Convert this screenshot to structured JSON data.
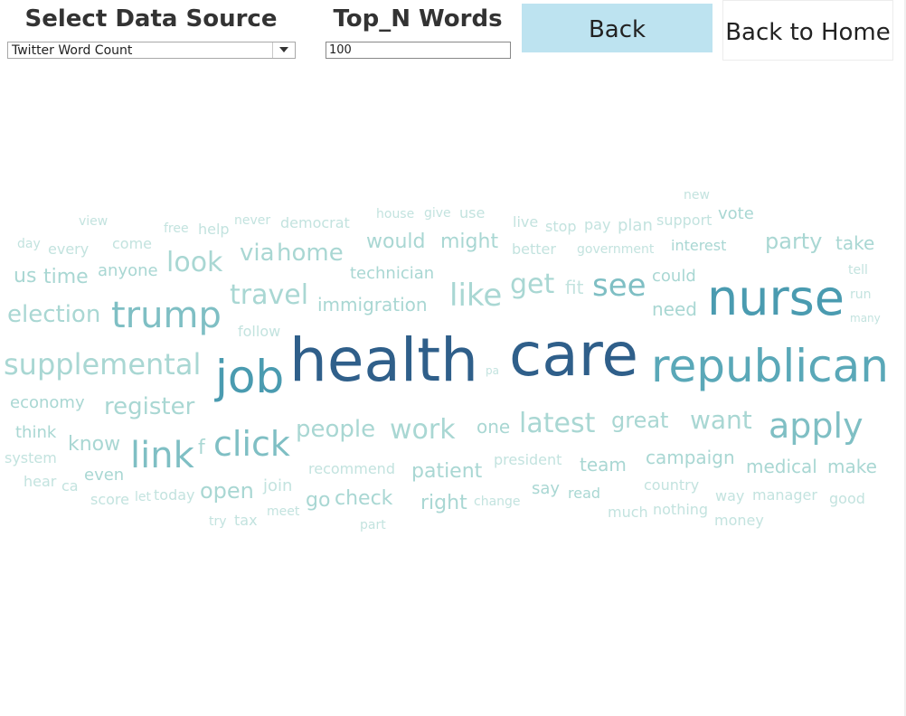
{
  "controls": {
    "source_title": "Select Data Source",
    "source_value": "Twitter Word Count",
    "topn_title": "Top_N Words",
    "topn_value": "100",
    "back_label": "Back",
    "home_label": "Back to Home"
  },
  "colors": {
    "back_button_bg": "#bde3f0",
    "dark_blue": "#2f5f8a",
    "teal": "#4a9bb0",
    "mid_teal": "#7fbfc4",
    "light_teal": "#a9d7d3",
    "pale_teal": "#c3e3df"
  },
  "word_cloud": [
    {
      "text": "health",
      "size": 66,
      "color": "#2f5f8a"
    },
    {
      "text": "care",
      "size": 66,
      "color": "#2f5f8a"
    },
    {
      "text": "nurse",
      "size": 54,
      "color": "#4a9bb0"
    },
    {
      "text": "republican",
      "size": 50,
      "color": "#5aa8b8"
    },
    {
      "text": "job",
      "size": 50,
      "color": "#4a9bb0"
    },
    {
      "text": "trump",
      "size": 40,
      "color": "#7fbfc4"
    },
    {
      "text": "link",
      "size": 40,
      "color": "#7fbfc4"
    },
    {
      "text": "click",
      "size": 38,
      "color": "#7fbfc4"
    },
    {
      "text": "apply",
      "size": 38,
      "color": "#7fbfc4"
    },
    {
      "text": "supplemental",
      "size": 32,
      "color": "#a9d7d3"
    },
    {
      "text": "like",
      "size": 34,
      "color": "#a9d7d3"
    },
    {
      "text": "see",
      "size": 34,
      "color": "#7fbfc4"
    },
    {
      "text": "get",
      "size": 30,
      "color": "#a9d7d3"
    },
    {
      "text": "look",
      "size": 30,
      "color": "#a9d7d3"
    },
    {
      "text": "travel",
      "size": 30,
      "color": "#a9d7d3"
    },
    {
      "text": "work",
      "size": 30,
      "color": "#a9d7d3"
    },
    {
      "text": "latest",
      "size": 30,
      "color": "#a9d7d3"
    },
    {
      "text": "want",
      "size": 28,
      "color": "#a9d7d3"
    },
    {
      "text": "register",
      "size": 26,
      "color": "#a9d7d3"
    },
    {
      "text": "election",
      "size": 26,
      "color": "#a9d7d3"
    },
    {
      "text": "people",
      "size": 26,
      "color": "#a9d7d3"
    },
    {
      "text": "home",
      "size": 26,
      "color": "#a9d7d3"
    },
    {
      "text": "via",
      "size": 26,
      "color": "#a9d7d3"
    },
    {
      "text": "great",
      "size": 24,
      "color": "#a9d7d3"
    },
    {
      "text": "party",
      "size": 24,
      "color": "#a9d7d3"
    },
    {
      "text": "open",
      "size": 24,
      "color": "#a9d7d3"
    },
    {
      "text": "would",
      "size": 22,
      "color": "#a9d7d3"
    },
    {
      "text": "might",
      "size": 22,
      "color": "#a9d7d3"
    },
    {
      "text": "time",
      "size": 22,
      "color": "#a9d7d3"
    },
    {
      "text": "us",
      "size": 22,
      "color": "#a9d7d3"
    },
    {
      "text": "know",
      "size": 22,
      "color": "#a9d7d3"
    },
    {
      "text": "patient",
      "size": 22,
      "color": "#a9d7d3"
    },
    {
      "text": "check",
      "size": 22,
      "color": "#a9d7d3"
    },
    {
      "text": "go",
      "size": 22,
      "color": "#a9d7d3"
    },
    {
      "text": "right",
      "size": 22,
      "color": "#a9d7d3"
    },
    {
      "text": "medical",
      "size": 20,
      "color": "#a9d7d3"
    },
    {
      "text": "make",
      "size": 20,
      "color": "#a9d7d3"
    },
    {
      "text": "campaign",
      "size": 20,
      "color": "#a9d7d3"
    },
    {
      "text": "team",
      "size": 20,
      "color": "#a9d7d3"
    },
    {
      "text": "immigration",
      "size": 20,
      "color": "#a9d7d3"
    },
    {
      "text": "technician",
      "size": 18,
      "color": "#a9d7d3"
    },
    {
      "text": "need",
      "size": 20,
      "color": "#a9d7d3"
    },
    {
      "text": "could",
      "size": 18,
      "color": "#a9d7d3"
    },
    {
      "text": "take",
      "size": 20,
      "color": "#a9d7d3"
    },
    {
      "text": "vote",
      "size": 18,
      "color": "#a9d7d3"
    },
    {
      "text": "interest",
      "size": 16,
      "color": "#a9d7d3"
    },
    {
      "text": "anyone",
      "size": 18,
      "color": "#a9d7d3"
    },
    {
      "text": "economy",
      "size": 18,
      "color": "#a9d7d3"
    },
    {
      "text": "think",
      "size": 18,
      "color": "#a9d7d3"
    },
    {
      "text": "even",
      "size": 18,
      "color": "#a9d7d3"
    },
    {
      "text": "say",
      "size": 18,
      "color": "#a9d7d3"
    },
    {
      "text": "read",
      "size": 16,
      "color": "#a9d7d3"
    },
    {
      "text": "one",
      "size": 20,
      "color": "#a9d7d3"
    },
    {
      "text": "f",
      "size": 22,
      "color": "#a9d7d3"
    },
    {
      "text": "fit",
      "size": 20,
      "color": "#c3e3df"
    },
    {
      "text": "recommend",
      "size": 16,
      "color": "#c3e3df"
    },
    {
      "text": "president",
      "size": 16,
      "color": "#c3e3df"
    },
    {
      "text": "country",
      "size": 16,
      "color": "#c3e3df"
    },
    {
      "text": "join",
      "size": 18,
      "color": "#c3e3df"
    },
    {
      "text": "come",
      "size": 16,
      "color": "#c3e3df"
    },
    {
      "text": "every",
      "size": 16,
      "color": "#c3e3df"
    },
    {
      "text": "day",
      "size": 14,
      "color": "#c3e3df"
    },
    {
      "text": "view",
      "size": 14,
      "color": "#c3e3df"
    },
    {
      "text": "free",
      "size": 14,
      "color": "#c3e3df"
    },
    {
      "text": "help",
      "size": 16,
      "color": "#c3e3df"
    },
    {
      "text": "never",
      "size": 14,
      "color": "#c3e3df"
    },
    {
      "text": "democrat",
      "size": 16,
      "color": "#c3e3df"
    },
    {
      "text": "house",
      "size": 14,
      "color": "#c3e3df"
    },
    {
      "text": "give",
      "size": 14,
      "color": "#c3e3df"
    },
    {
      "text": "use",
      "size": 16,
      "color": "#c3e3df"
    },
    {
      "text": "live",
      "size": 16,
      "color": "#c3e3df"
    },
    {
      "text": "stop",
      "size": 16,
      "color": "#c3e3df"
    },
    {
      "text": "pay",
      "size": 16,
      "color": "#c3e3df"
    },
    {
      "text": "plan",
      "size": 18,
      "color": "#c3e3df"
    },
    {
      "text": "support",
      "size": 16,
      "color": "#c3e3df"
    },
    {
      "text": "new",
      "size": 14,
      "color": "#c3e3df"
    },
    {
      "text": "better",
      "size": 16,
      "color": "#c3e3df"
    },
    {
      "text": "government",
      "size": 14,
      "color": "#c3e3df"
    },
    {
      "text": "tell",
      "size": 14,
      "color": "#c3e3df"
    },
    {
      "text": "run",
      "size": 14,
      "color": "#c3e3df"
    },
    {
      "text": "many",
      "size": 12,
      "color": "#c3e3df"
    },
    {
      "text": "follow",
      "size": 16,
      "color": "#c3e3df"
    },
    {
      "text": "pa",
      "size": 12,
      "color": "#c3e3df"
    },
    {
      "text": "system",
      "size": 16,
      "color": "#c3e3df"
    },
    {
      "text": "hear",
      "size": 16,
      "color": "#c3e3df"
    },
    {
      "text": "ca",
      "size": 16,
      "color": "#c3e3df"
    },
    {
      "text": "score",
      "size": 16,
      "color": "#c3e3df"
    },
    {
      "text": "let",
      "size": 14,
      "color": "#c3e3df"
    },
    {
      "text": "today",
      "size": 16,
      "color": "#c3e3df"
    },
    {
      "text": "meet",
      "size": 14,
      "color": "#c3e3df"
    },
    {
      "text": "try",
      "size": 14,
      "color": "#c3e3df"
    },
    {
      "text": "tax",
      "size": 16,
      "color": "#c3e3df"
    },
    {
      "text": "change",
      "size": 14,
      "color": "#c3e3df"
    },
    {
      "text": "part",
      "size": 14,
      "color": "#c3e3df"
    },
    {
      "text": "much",
      "size": 16,
      "color": "#c3e3df"
    },
    {
      "text": "nothing",
      "size": 16,
      "color": "#c3e3df"
    },
    {
      "text": "way",
      "size": 16,
      "color": "#c3e3df"
    },
    {
      "text": "manager",
      "size": 16,
      "color": "#c3e3df"
    },
    {
      "text": "good",
      "size": 16,
      "color": "#c3e3df"
    },
    {
      "text": "money",
      "size": 16,
      "color": "#c3e3df"
    }
  ]
}
